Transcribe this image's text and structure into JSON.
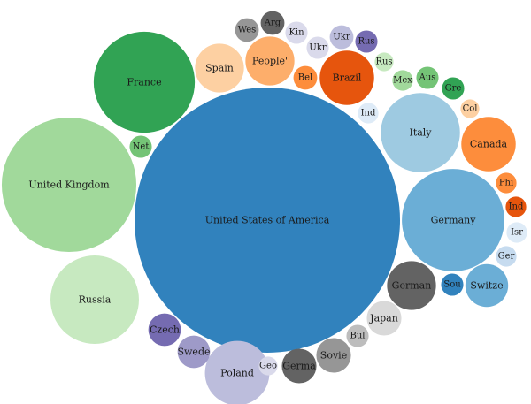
{
  "chart_data": {
    "type": "bubble",
    "title": "",
    "items": [
      {
        "label": "United States of America",
        "value": 1000,
        "color": "#3182bd"
      },
      {
        "label": "United Kingdom",
        "value": 257,
        "color": "#a1d99b"
      },
      {
        "label": "Russia",
        "value": 111,
        "color": "#c7e9c0"
      },
      {
        "label": "France",
        "value": 145,
        "color": "#31a354"
      },
      {
        "label": "Germany",
        "value": 149,
        "color": "#6baed6"
      },
      {
        "label": "Italy",
        "value": 89,
        "color": "#9ecae1"
      },
      {
        "label": "Canada",
        "value": 42,
        "color": "#fd8d3c"
      },
      {
        "label": "Poland",
        "value": 59,
        "color": "#bcbddc"
      },
      {
        "label": "Spain",
        "value": 34,
        "color": "#fdd0a2"
      },
      {
        "label": "People'",
        "value": 34,
        "color": "#fdae6b"
      },
      {
        "label": "Brazil",
        "value": 42,
        "color": "#e6550d"
      },
      {
        "label": "German",
        "value": 34,
        "color": "#636363"
      },
      {
        "label": "Switze",
        "value": 26,
        "color": "#6baed6"
      },
      {
        "label": "Japan",
        "value": 17,
        "color": "#d9d9d9"
      },
      {
        "label": "Sovie",
        "value": 17,
        "color": "#969696"
      },
      {
        "label": "Germa",
        "value": 17,
        "color": "#636363"
      },
      {
        "label": "Swede",
        "value": 15,
        "color": "#9e9ac8"
      },
      {
        "label": "Czech",
        "value": 15,
        "color": "#756bb1"
      },
      {
        "label": "Net",
        "value": 7,
        "color": "#74c476"
      },
      {
        "label": "Wes",
        "value": 8,
        "color": "#969696"
      },
      {
        "label": "Arg",
        "value": 8,
        "color": "#636363"
      },
      {
        "label": "Kin",
        "value": 7,
        "color": "#dadaeb"
      },
      {
        "label": "Ukr",
        "value": 8,
        "color": "#bcbddc"
      },
      {
        "label": "Ukr",
        "value": 7,
        "color": "#dadaeb"
      },
      {
        "label": "Rus",
        "value": 7,
        "color": "#756bb1"
      },
      {
        "label": "Rus",
        "value": 5,
        "color": "#c7e9c0"
      },
      {
        "label": "Bel",
        "value": 8,
        "color": "#fd8d3c"
      },
      {
        "label": "Mex",
        "value": 6,
        "color": "#a1d99b"
      },
      {
        "label": "Aus",
        "value": 7,
        "color": "#74c476"
      },
      {
        "label": "Gre",
        "value": 7,
        "color": "#31a354"
      },
      {
        "label": "Col",
        "value": 5,
        "color": "#fdd0a2"
      },
      {
        "label": "Ind",
        "value": 6,
        "color": "#deebf7"
      },
      {
        "label": "Phi",
        "value": 6,
        "color": "#fd8d3c"
      },
      {
        "label": "Ind",
        "value": 6,
        "color": "#e6550d"
      },
      {
        "label": "Isr",
        "value": 6,
        "color": "#deebf7"
      },
      {
        "label": "Ger",
        "value": 6,
        "color": "#c6dbef"
      },
      {
        "label": "Sou",
        "value": 7,
        "color": "#3182bd"
      },
      {
        "label": "Bul",
        "value": 7,
        "color": "#bdbdbd"
      },
      {
        "label": "Geo",
        "value": 5,
        "color": "#dadaeb"
      }
    ]
  }
}
